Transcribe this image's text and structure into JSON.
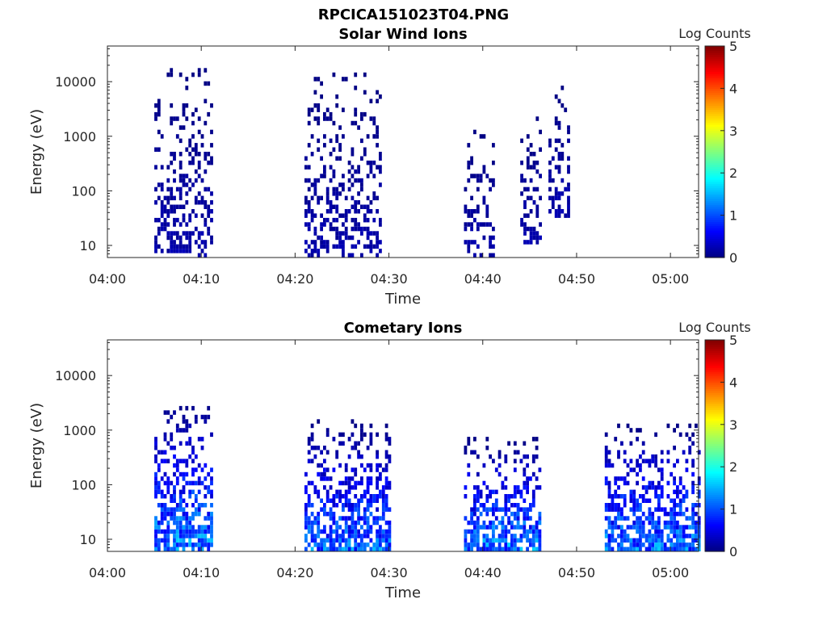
{
  "figure": {
    "title": "RPCICA151023T04.PNG"
  },
  "chart_data": [
    {
      "type": "heatmap",
      "title": "Solar Wind Ions",
      "xlabel": "Time",
      "ylabel": "Energy (eV)",
      "yscale": "log",
      "ylim": [
        6,
        45000
      ],
      "xlim": [
        "04:00",
        "05:03"
      ],
      "x_ticks": [
        "04:00",
        "04:10",
        "04:20",
        "04:30",
        "04:40",
        "04:50",
        "05:00"
      ],
      "y_ticks": [
        "10",
        "100",
        "1000",
        "10000"
      ],
      "colorbar": {
        "label": "Log Counts",
        "range": [
          0,
          5
        ],
        "ticks": [
          "0",
          "1",
          "2",
          "3",
          "4",
          "5"
        ],
        "colormap": "jet"
      },
      "grid": false,
      "bursts": [
        {
          "start": "04:05",
          "end": "04:11",
          "emin": 6,
          "emax": 17000,
          "peak_log_counts": 0.3
        },
        {
          "start": "04:21",
          "end": "04:29",
          "emin": 6,
          "emax": 14000,
          "peak_log_counts": 0.3
        },
        {
          "start": "04:38",
          "end": "04:41",
          "emin": 6,
          "emax": 1500,
          "peak_log_counts": 0.3
        },
        {
          "start": "04:44",
          "end": "04:46",
          "emin": 10,
          "emax": 2500,
          "peak_log_counts": 0.3
        },
        {
          "start": "04:47",
          "end": "04:49",
          "emin": 35,
          "emax": 12000,
          "peak_log_counts": 0.3
        }
      ]
    },
    {
      "type": "heatmap",
      "title": "Cometary Ions",
      "xlabel": "Time",
      "ylabel": "Energy (eV)",
      "yscale": "log",
      "ylim": [
        6,
        45000
      ],
      "xlim": [
        "04:00",
        "05:03"
      ],
      "x_ticks": [
        "04:00",
        "04:10",
        "04:20",
        "04:30",
        "04:40",
        "04:50",
        "05:00"
      ],
      "y_ticks": [
        "10",
        "100",
        "1000",
        "10000"
      ],
      "colorbar": {
        "label": "Log Counts",
        "range": [
          0,
          5
        ],
        "ticks": [
          "0",
          "1",
          "2",
          "3",
          "4",
          "5"
        ],
        "colormap": "jet"
      },
      "grid": false,
      "bursts": [
        {
          "start": "04:05",
          "end": "04:11",
          "emin": 6,
          "emax": 3500,
          "peak_log_counts": 1.8
        },
        {
          "start": "04:21",
          "end": "04:30",
          "emin": 6,
          "emax": 1500,
          "peak_log_counts": 1.6
        },
        {
          "start": "04:38",
          "end": "04:46",
          "emin": 6,
          "emax": 700,
          "peak_log_counts": 1.8
        },
        {
          "start": "04:53",
          "end": "05:03",
          "emin": 6,
          "emax": 1200,
          "peak_log_counts": 1.7
        }
      ]
    }
  ]
}
